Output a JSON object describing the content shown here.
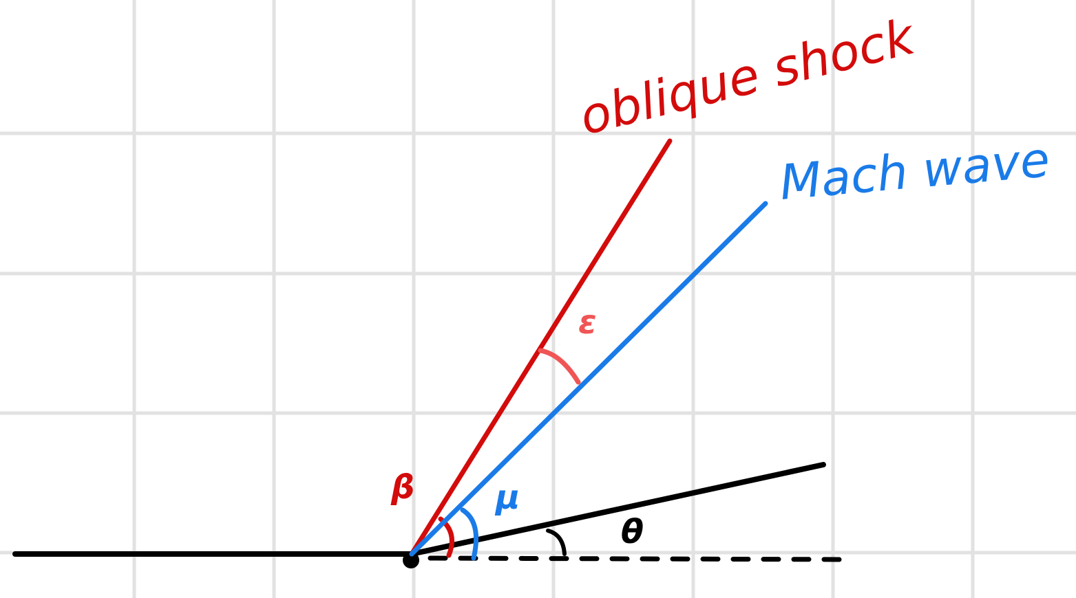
{
  "labels": {
    "oblique_shock": "oblique shock",
    "mach_wave": "Mach wave",
    "beta": "β",
    "mu": "μ",
    "epsilon": "ε",
    "theta": "θ"
  },
  "colors": {
    "grid": "#e2e2e2",
    "shock": "#d30b0b",
    "mach": "#1a7be8",
    "epsilon": "#f05555",
    "wall": "#000000"
  }
}
